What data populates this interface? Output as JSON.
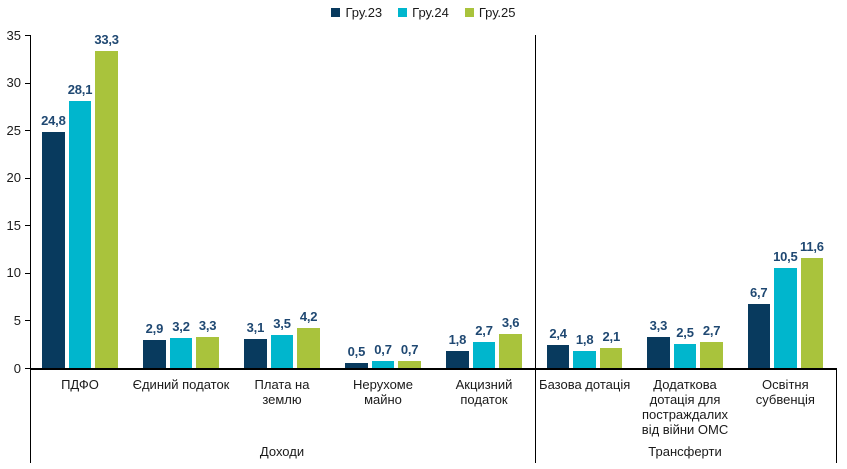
{
  "chart_data": {
    "type": "bar",
    "legend_position": "top-center",
    "grid": false,
    "ylim": [
      0,
      35
    ],
    "ytick_step": 5,
    "yticks": [
      0,
      5,
      10,
      15,
      20,
      25,
      30,
      35
    ],
    "decimal_separator": ",",
    "value_label_color": "#1F4872",
    "axis_color": "#000000",
    "series": [
      {
        "name": "Гру.23",
        "color": "#083A5E",
        "values": [
          24.8,
          2.9,
          3.1,
          0.5,
          1.8,
          2.4,
          3.3,
          6.7
        ]
      },
      {
        "name": "Гру.24",
        "color": "#00B6CD",
        "values": [
          28.1,
          3.2,
          3.5,
          0.7,
          2.7,
          1.8,
          2.5,
          10.5
        ]
      },
      {
        "name": "Гру.25",
        "color": "#A9C33C",
        "values": [
          33.3,
          3.3,
          4.2,
          0.7,
          3.6,
          2.1,
          2.7,
          11.6
        ]
      }
    ],
    "categories": [
      "ПДФО",
      "Єдиний податок",
      "Плата на землю",
      "Нерухоме майно",
      "Акцизний податок",
      "Базова дотація",
      "Додаткова дотація для постраждалих від війни ОМС",
      "Освітня субвенція"
    ],
    "category_lines": [
      [
        "ПДФО"
      ],
      [
        "Єдиний податок"
      ],
      [
        "Плата на",
        "землю"
      ],
      [
        "Нерухоме",
        "майно"
      ],
      [
        "Акцизний",
        "податок"
      ],
      [
        "Базова дотація"
      ],
      [
        "Додаткова",
        "дотація для",
        "постраждалих",
        "від війни ОМС"
      ],
      [
        "Освітня",
        "субвенція"
      ]
    ],
    "groups": [
      {
        "label": "Доходи",
        "category_count": 5
      },
      {
        "label": "Трансферти",
        "category_count": 3
      }
    ]
  }
}
